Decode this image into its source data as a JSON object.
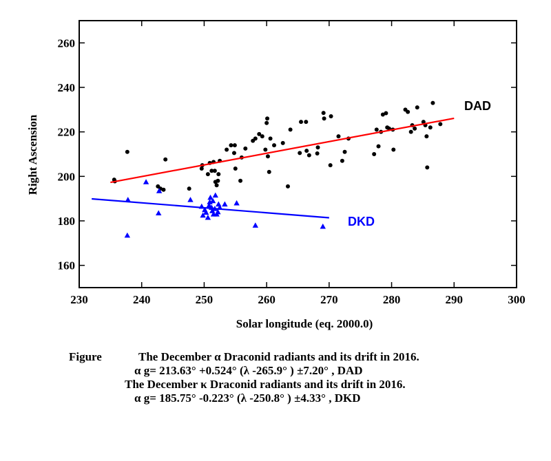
{
  "chart_data": {
    "type": "scatter",
    "xlabel": "Solar longitude (eq. 2000.0)",
    "ylabel": "Right Ascension",
    "xlim": [
      230,
      300
    ],
    "ylim": [
      150,
      270
    ],
    "xticks": [
      "230",
      "240",
      "250",
      "260",
      "270",
      "280",
      "290",
      "300"
    ],
    "yticks": [
      "160",
      "180",
      "200",
      "220",
      "240",
      "260"
    ],
    "legend": "none",
    "grid": false,
    "series": [
      {
        "name": "DAD",
        "marker": "circle",
        "color": "#000000",
        "points": [
          [
            235.6,
            198.5
          ],
          [
            235.7,
            197.8
          ],
          [
            237.7,
            211
          ],
          [
            242.6,
            195.5
          ],
          [
            243,
            194.5
          ],
          [
            243.5,
            194
          ],
          [
            243.8,
            207.6
          ],
          [
            247.6,
            194.5
          ],
          [
            249.6,
            203.5
          ],
          [
            249.7,
            205
          ],
          [
            250.6,
            201
          ],
          [
            250.9,
            206
          ],
          [
            251.2,
            202.5
          ],
          [
            251.5,
            206.5
          ],
          [
            251.7,
            202.5
          ],
          [
            251.8,
            197.5
          ],
          [
            252,
            196
          ],
          [
            252.2,
            198
          ],
          [
            252.3,
            201
          ],
          [
            252.5,
            207
          ],
          [
            253.6,
            212
          ],
          [
            254.3,
            214
          ],
          [
            254.8,
            210.5
          ],
          [
            254.9,
            214
          ],
          [
            255,
            203.5
          ],
          [
            255.8,
            198
          ],
          [
            256,
            208.5
          ],
          [
            256.6,
            212.5
          ],
          [
            257.8,
            216
          ],
          [
            258.2,
            217
          ],
          [
            258.8,
            219
          ],
          [
            259.3,
            218
          ],
          [
            259.8,
            212
          ],
          [
            260,
            224
          ],
          [
            260.1,
            226
          ],
          [
            260.2,
            209
          ],
          [
            260.4,
            202
          ],
          [
            260.6,
            217
          ],
          [
            261.2,
            214
          ],
          [
            262.6,
            215
          ],
          [
            263.4,
            195.5
          ],
          [
            263.8,
            221
          ],
          [
            265.3,
            210.5
          ],
          [
            265.5,
            224.5
          ],
          [
            266.3,
            224.5
          ],
          [
            266.4,
            211.5
          ],
          [
            266.8,
            209.5
          ],
          [
            268.1,
            210.3
          ],
          [
            268.2,
            213
          ],
          [
            269.1,
            228.5
          ],
          [
            269.2,
            226
          ],
          [
            270.2,
            205
          ],
          [
            270.3,
            227
          ],
          [
            271.5,
            218
          ],
          [
            272.1,
            207
          ],
          [
            272.5,
            211
          ],
          [
            273.1,
            217
          ],
          [
            277.2,
            210
          ],
          [
            277.6,
            221
          ],
          [
            277.9,
            213.5
          ],
          [
            278.3,
            220
          ],
          [
            278.6,
            227.8
          ],
          [
            279.1,
            228.4
          ],
          [
            279.3,
            222
          ],
          [
            279.6,
            221.5
          ],
          [
            280.2,
            221
          ],
          [
            280.3,
            212
          ],
          [
            282.2,
            230
          ],
          [
            282.6,
            229
          ],
          [
            283.1,
            220
          ],
          [
            283.3,
            223
          ],
          [
            283.7,
            221.5
          ],
          [
            284.1,
            231
          ],
          [
            285.1,
            224.5
          ],
          [
            285.4,
            223
          ],
          [
            285.6,
            218
          ],
          [
            285.7,
            204
          ],
          [
            286.2,
            222
          ],
          [
            286.6,
            233
          ],
          [
            287.8,
            223.5
          ]
        ],
        "trend": {
          "x": [
            235,
            290
          ],
          "y": [
            197.3,
            226.1
          ],
          "color": "#ff0000"
        }
      },
      {
        "name": "DKD",
        "marker": "triangle",
        "color": "#0000ff",
        "points": [
          [
            237.7,
            173.5
          ],
          [
            237.8,
            189.5
          ],
          [
            240.7,
            197.5
          ],
          [
            242.7,
            183.5
          ],
          [
            242.8,
            193.5
          ],
          [
            247.8,
            189.5
          ],
          [
            249.6,
            186.5
          ],
          [
            249.8,
            182.5
          ],
          [
            250.1,
            185
          ],
          [
            250.3,
            183.8
          ],
          [
            250.6,
            181.5
          ],
          [
            250.8,
            187
          ],
          [
            250.9,
            188.5
          ],
          [
            251,
            190.5
          ],
          [
            251.2,
            186
          ],
          [
            251.3,
            184.5
          ],
          [
            251.4,
            189
          ],
          [
            251.5,
            183
          ],
          [
            251.7,
            185.5
          ],
          [
            251.8,
            191.5
          ],
          [
            252,
            183
          ],
          [
            252.2,
            184
          ],
          [
            252.3,
            187.5
          ],
          [
            252.5,
            186
          ],
          [
            253.3,
            187.5
          ],
          [
            255.2,
            188
          ],
          [
            258.2,
            178
          ],
          [
            269,
            177.5
          ]
        ],
        "trend": {
          "x": [
            232,
            270
          ],
          "y": [
            189.9,
            181.4
          ],
          "color": "#0000ff"
        }
      }
    ],
    "caption": {
      "label": "Figure",
      "line1": "The December  α  Draconid radiants and its drift in 2016.",
      "line2": "α g= 213.63°  +0.524°  (λ -265.9°  ) ±7.20°  , DAD",
      "line3": "The December κ Draconid radiants and its drift in 2016.",
      "line4": "α g= 185.75°  -0.223°  (λ -250.8°  ) ±4.33°  , DKD"
    }
  }
}
